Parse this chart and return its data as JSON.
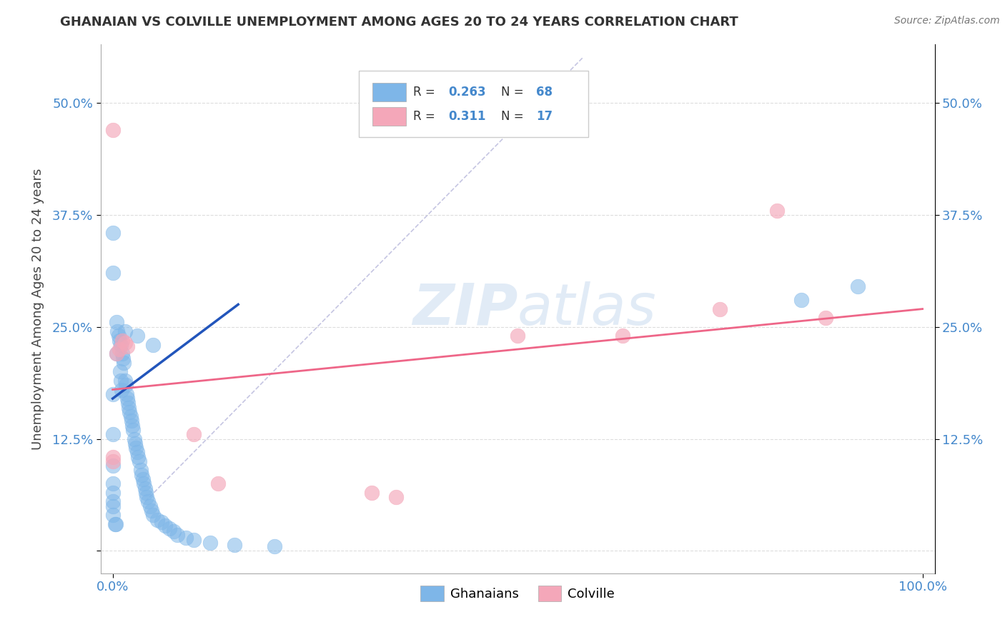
{
  "title": "GHANAIAN VS COLVILLE UNEMPLOYMENT AMONG AGES 20 TO 24 YEARS CORRELATION CHART",
  "source": "Source: ZipAtlas.com",
  "ylabel": "Unemployment Among Ages 20 to 24 years",
  "xlim": [
    0.0,
    1.0
  ],
  "ylim": [
    0.0,
    0.55
  ],
  "x_tick_labels": [
    "0.0%",
    "100.0%"
  ],
  "y_tick_labels": [
    "",
    "12.5%",
    "25.0%",
    "37.5%",
    "50.0%"
  ],
  "y_ticks": [
    0.0,
    0.125,
    0.25,
    0.375,
    0.5
  ],
  "ghanaian_R": 0.263,
  "ghanaian_N": 68,
  "colville_R": 0.311,
  "colville_N": 17,
  "blue_color": "#7EB6E8",
  "pink_color": "#F4A7B9",
  "blue_line_color": "#2255BB",
  "pink_line_color": "#EE6688",
  "title_color": "#333333",
  "tick_color": "#4488CC",
  "source_color": "#777777",
  "grid_color": "#DDDDDD",
  "diag_color": "#BBBBDD",
  "watermark_color": "#C5D8EE",
  "ghanaian_x": [
    0.0,
    0.0,
    0.0,
    0.0,
    0.0,
    0.0,
    0.0,
    0.0,
    0.0,
    0.0,
    0.003,
    0.004,
    0.005,
    0.005,
    0.006,
    0.007,
    0.008,
    0.009,
    0.01,
    0.01,
    0.011,
    0.012,
    0.013,
    0.014,
    0.015,
    0.015,
    0.016,
    0.017,
    0.018,
    0.019,
    0.02,
    0.021,
    0.022,
    0.023,
    0.024,
    0.025,
    0.027,
    0.028,
    0.029,
    0.03,
    0.031,
    0.033,
    0.035,
    0.036,
    0.037,
    0.038,
    0.04,
    0.041,
    0.042,
    0.044,
    0.046,
    0.048,
    0.05,
    0.055,
    0.06,
    0.065,
    0.07,
    0.075,
    0.08,
    0.09,
    0.1,
    0.12,
    0.15,
    0.2,
    0.85,
    0.92,
    0.03,
    0.05
  ],
  "ghanaian_y": [
    0.355,
    0.31,
    0.175,
    0.13,
    0.095,
    0.075,
    0.065,
    0.055,
    0.05,
    0.04,
    0.03,
    0.03,
    0.255,
    0.22,
    0.245,
    0.24,
    0.235,
    0.2,
    0.19,
    0.23,
    0.18,
    0.22,
    0.215,
    0.21,
    0.245,
    0.19,
    0.185,
    0.175,
    0.17,
    0.165,
    0.16,
    0.155,
    0.15,
    0.145,
    0.14,
    0.135,
    0.125,
    0.12,
    0.115,
    0.11,
    0.105,
    0.1,
    0.09,
    0.085,
    0.08,
    0.075,
    0.07,
    0.065,
    0.06,
    0.055,
    0.05,
    0.045,
    0.04,
    0.035,
    0.032,
    0.028,
    0.025,
    0.022,
    0.018,
    0.015,
    0.012,
    0.009,
    0.007,
    0.005,
    0.28,
    0.295,
    0.24,
    0.23
  ],
  "colville_x": [
    0.0,
    0.0,
    0.0,
    0.005,
    0.008,
    0.012,
    0.015,
    0.018,
    0.1,
    0.13,
    0.32,
    0.35,
    0.5,
    0.63,
    0.75,
    0.82,
    0.88
  ],
  "colville_y": [
    0.47,
    0.105,
    0.1,
    0.22,
    0.225,
    0.235,
    0.232,
    0.228,
    0.13,
    0.075,
    0.065,
    0.06,
    0.24,
    0.24,
    0.27,
    0.38,
    0.26
  ],
  "blue_line_x": [
    0.0,
    0.155
  ],
  "blue_line_y": [
    0.17,
    0.275
  ],
  "pink_line_x": [
    0.0,
    1.0
  ],
  "pink_line_y": [
    0.18,
    0.27
  ]
}
